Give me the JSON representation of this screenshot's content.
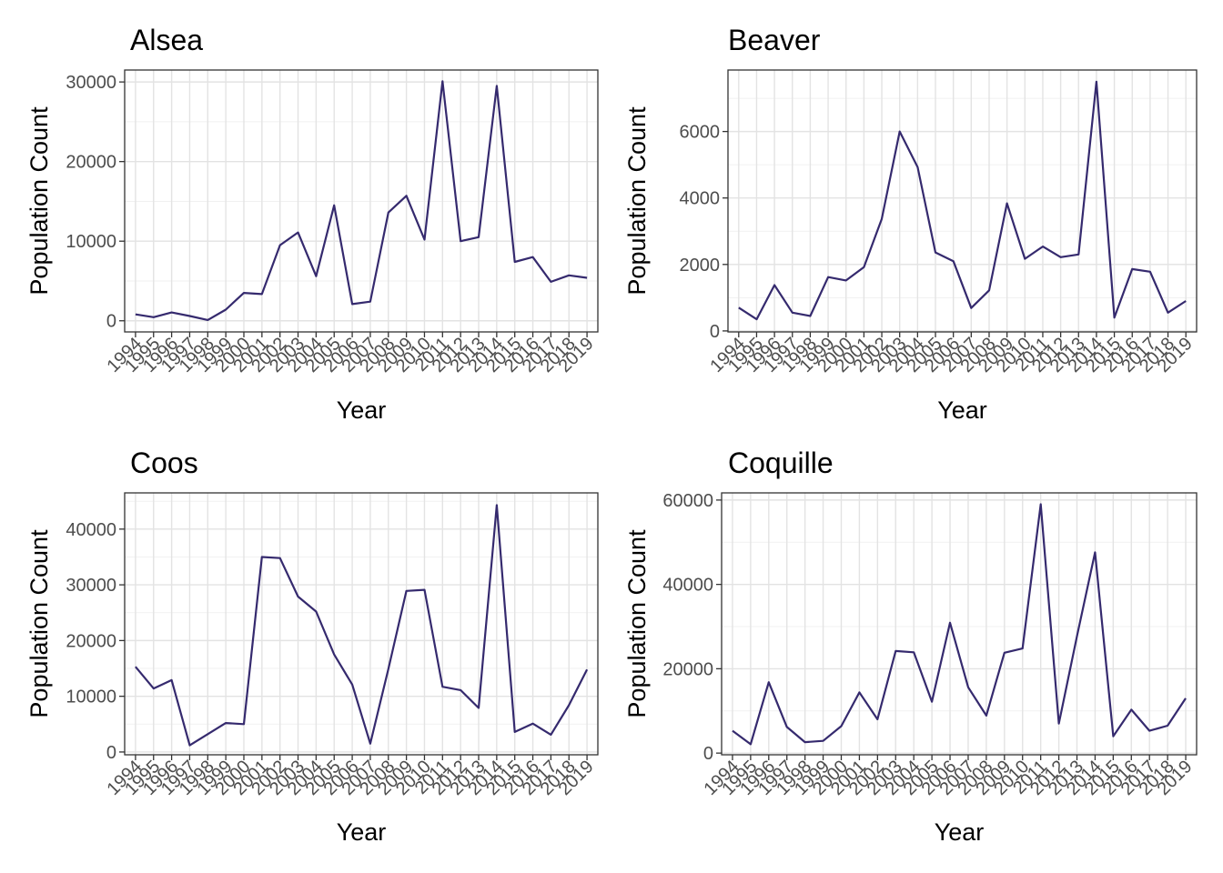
{
  "colors": {
    "line": "#352A6E",
    "grid_major": "#e3e3e3",
    "grid_minor": "#f1f1f1",
    "panel_border": "#333333",
    "tick_text": "#4d4d4d"
  },
  "chart_data": [
    {
      "type": "line",
      "title": "Alsea",
      "xlabel": "Year",
      "ylabel": "Population Count",
      "grid": true,
      "x": [
        1994,
        1995,
        1996,
        1997,
        1998,
        1999,
        2000,
        2001,
        2002,
        2003,
        2004,
        2005,
        2006,
        2007,
        2008,
        2009,
        2010,
        2011,
        2012,
        2013,
        2014,
        2015,
        2016,
        2017,
        2018,
        2019
      ],
      "y": [
        800,
        450,
        1050,
        600,
        100,
        1400,
        3500,
        3350,
        9500,
        11100,
        5600,
        14500,
        2100,
        2400,
        13600,
        15700,
        10200,
        30100,
        10000,
        10500,
        29500,
        7400,
        8000,
        4900,
        5700,
        5400
      ],
      "ylim": [
        -1400,
        31500
      ],
      "yticks": [
        0,
        10000,
        20000,
        30000
      ],
      "ytick_labels": [
        "0",
        "10000",
        "20000",
        "30000"
      ],
      "xtick_labels": [
        "1994",
        "1995",
        "1996",
        "1997",
        "1998",
        "1999",
        "2000",
        "2001",
        "2002",
        "2003",
        "2004",
        "2005",
        "2006",
        "2007",
        "2008",
        "2009",
        "2010",
        "2011",
        "2012",
        "2013",
        "2014",
        "2015",
        "2016",
        "2017",
        "2018",
        "2019"
      ]
    },
    {
      "type": "line",
      "title": "Beaver",
      "xlabel": "Year",
      "ylabel": "Population Count",
      "grid": true,
      "x": [
        1994,
        1995,
        1996,
        1997,
        1998,
        1999,
        2000,
        2001,
        2002,
        2003,
        2004,
        2005,
        2006,
        2007,
        2008,
        2009,
        2010,
        2011,
        2012,
        2013,
        2014,
        2015,
        2016,
        2017,
        2018,
        2019
      ],
      "y": [
        700,
        350,
        1380,
        550,
        450,
        1620,
        1520,
        1920,
        3370,
        6000,
        4930,
        2360,
        2100,
        690,
        1220,
        3840,
        2170,
        2540,
        2220,
        2300,
        7500,
        400,
        1860,
        1780,
        550,
        900
      ],
      "ylim": [
        -30,
        7850
      ],
      "yticks": [
        0,
        2000,
        4000,
        6000
      ],
      "ytick_labels": [
        "0",
        "2000",
        "4000",
        "6000"
      ],
      "xtick_labels": [
        "1994",
        "1995",
        "1996",
        "1997",
        "1998",
        "1999",
        "2000",
        "2001",
        "2002",
        "2003",
        "2004",
        "2005",
        "2006",
        "2007",
        "2008",
        "2009",
        "2010",
        "2011",
        "2012",
        "2013",
        "2014",
        "2015",
        "2016",
        "2017",
        "2018",
        "2019"
      ]
    },
    {
      "type": "line",
      "title": "Coos",
      "xlabel": "Year",
      "ylabel": "Population Count",
      "grid": true,
      "x": [
        1994,
        1995,
        1996,
        1997,
        1998,
        1999,
        2000,
        2001,
        2002,
        2003,
        2004,
        2005,
        2006,
        2007,
        2008,
        2009,
        2010,
        2011,
        2012,
        2013,
        2014,
        2015,
        2016,
        2017,
        2018,
        2019
      ],
      "y": [
        15300,
        11400,
        12900,
        1200,
        3200,
        5200,
        5000,
        35000,
        34800,
        27900,
        25200,
        17500,
        12100,
        1500,
        14900,
        28900,
        29100,
        11700,
        11100,
        7900,
        44300,
        3600,
        5100,
        3100,
        8400,
        14800
      ],
      "ylim": [
        -500,
        46500
      ],
      "yticks": [
        0,
        10000,
        20000,
        30000,
        40000
      ],
      "ytick_labels": [
        "0",
        "10000",
        "20000",
        "30000",
        "40000"
      ],
      "xtick_labels": [
        "1994",
        "1995",
        "1996",
        "1997",
        "1998",
        "1999",
        "2000",
        "2001",
        "2002",
        "2003",
        "2004",
        "2005",
        "2006",
        "2007",
        "2008",
        "2009",
        "2010",
        "2011",
        "2012",
        "2013",
        "2014",
        "2015",
        "2016",
        "2017",
        "2018",
        "2019"
      ]
    },
    {
      "type": "line",
      "title": "Coquille",
      "xlabel": "Year",
      "ylabel": "Population Count",
      "grid": true,
      "x": [
        1994,
        1995,
        1996,
        1997,
        1998,
        1999,
        2000,
        2001,
        2002,
        2003,
        2004,
        2005,
        2006,
        2007,
        2008,
        2009,
        2010,
        2011,
        2012,
        2013,
        2014,
        2015,
        2016,
        2017,
        2018,
        2019
      ],
      "y": [
        5300,
        2100,
        16800,
        6200,
        2600,
        2900,
        6400,
        14400,
        8000,
        24200,
        23900,
        12200,
        30900,
        15600,
        8900,
        23800,
        24800,
        59000,
        7000,
        27700,
        47600,
        4000,
        10300,
        5300,
        6500,
        13000
      ],
      "ylim": [
        -400,
        61700
      ],
      "yticks": [
        0,
        20000,
        40000,
        60000
      ],
      "ytick_labels": [
        "0",
        "20000",
        "40000",
        "60000"
      ],
      "xtick_labels": [
        "1994",
        "1995",
        "1996",
        "1997",
        "1998",
        "1999",
        "2000",
        "2001",
        "2002",
        "2003",
        "2004",
        "2005",
        "2006",
        "2007",
        "2008",
        "2009",
        "2010",
        "2011",
        "2012",
        "2013",
        "2014",
        "2015",
        "2016",
        "2017",
        "2018",
        "2019"
      ]
    }
  ]
}
